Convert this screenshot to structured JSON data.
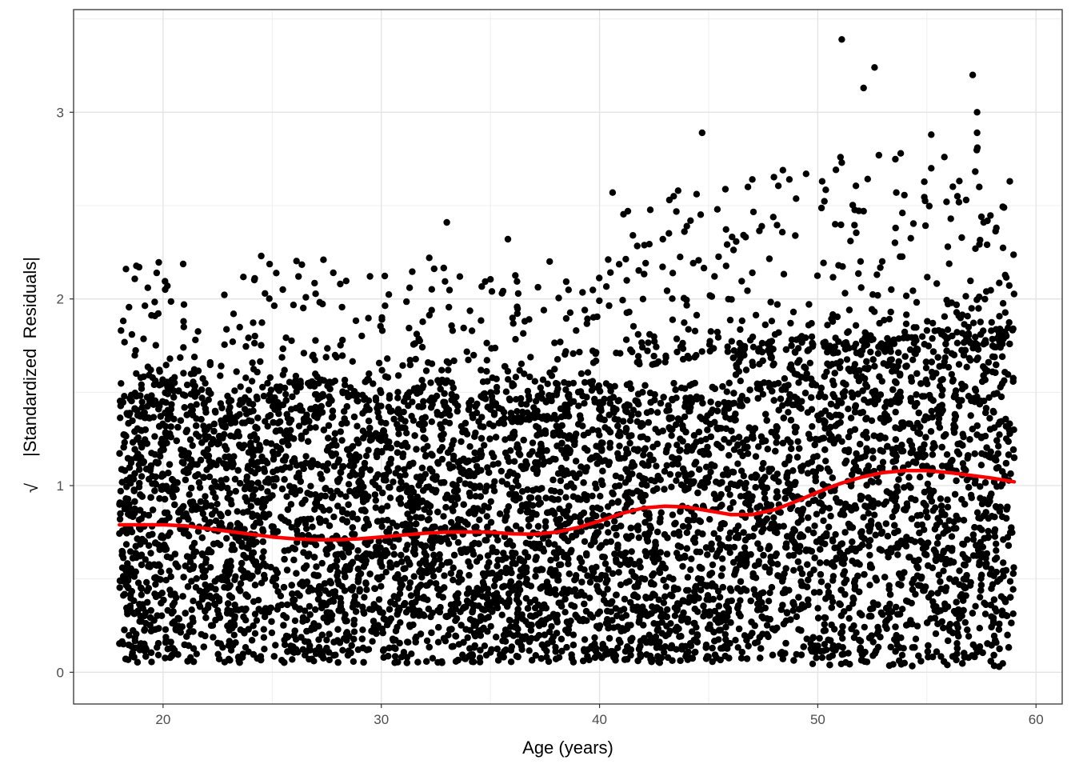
{
  "chart_data": {
    "type": "scatter",
    "title": "",
    "xlabel": "Age (years)",
    "ylabel_prefix": "√",
    "ylabel": "|Standardized  Residuals|",
    "xlim": [
      15.9,
      61.2
    ],
    "ylim": [
      -0.17,
      3.55
    ],
    "x_ticks": [
      20,
      30,
      40,
      50,
      60
    ],
    "x_tick_labels": [
      "20",
      "30",
      "40",
      "50",
      "60"
    ],
    "y_ticks": [
      0,
      1,
      2,
      3
    ],
    "y_tick_labels": [
      "0",
      "1",
      "2",
      "3"
    ],
    "grid": true,
    "point_color": "#000000",
    "smooth_color": "#ff0000",
    "x_range_of_points": [
      18,
      59
    ],
    "points_dense_band": "Points densely cover roughly 0.05 to 1.5 across the full age range, widening with age",
    "outliers": [
      {
        "x": 51.1,
        "y": 3.39
      },
      {
        "x": 52.6,
        "y": 3.24
      },
      {
        "x": 57.1,
        "y": 3.2
      },
      {
        "x": 52.1,
        "y": 3.13
      },
      {
        "x": 57.3,
        "y": 3.0
      },
      {
        "x": 57.3,
        "y": 2.89
      },
      {
        "x": 44.7,
        "y": 2.89
      },
      {
        "x": 55.2,
        "y": 2.88
      },
      {
        "x": 53.8,
        "y": 2.78
      },
      {
        "x": 52.8,
        "y": 2.77
      },
      {
        "x": 55.8,
        "y": 2.76
      },
      {
        "x": 51.1,
        "y": 2.73
      },
      {
        "x": 55.2,
        "y": 2.7
      },
      {
        "x": 48.4,
        "y": 2.69
      },
      {
        "x": 47.0,
        "y": 2.64
      },
      {
        "x": 48.7,
        "y": 2.64
      },
      {
        "x": 50.2,
        "y": 2.63
      },
      {
        "x": 58.8,
        "y": 2.63
      },
      {
        "x": 46.8,
        "y": 2.6
      },
      {
        "x": 57.4,
        "y": 2.6
      },
      {
        "x": 43.6,
        "y": 2.58
      },
      {
        "x": 40.6,
        "y": 2.57
      },
      {
        "x": 53.6,
        "y": 2.57
      },
      {
        "x": 43.4,
        "y": 2.55
      },
      {
        "x": 56.4,
        "y": 2.55
      },
      {
        "x": 43.2,
        "y": 2.53
      },
      {
        "x": 56.8,
        "y": 2.53
      },
      {
        "x": 55.9,
        "y": 2.52
      },
      {
        "x": 45.4,
        "y": 2.48
      },
      {
        "x": 52.1,
        "y": 2.47
      },
      {
        "x": 41.3,
        "y": 2.47
      },
      {
        "x": 57.5,
        "y": 2.44
      },
      {
        "x": 33.0,
        "y": 2.41
      },
      {
        "x": 57.6,
        "y": 2.41
      },
      {
        "x": 50.8,
        "y": 2.4
      },
      {
        "x": 44.0,
        "y": 2.39
      },
      {
        "x": 35.8,
        "y": 2.32
      },
      {
        "x": 42.9,
        "y": 2.32
      },
      {
        "x": 51.5,
        "y": 2.31
      },
      {
        "x": 24.5,
        "y": 2.23
      },
      {
        "x": 32.2,
        "y": 2.22
      },
      {
        "x": 18.9,
        "y": 2.17
      },
      {
        "x": 18.3,
        "y": 2.16
      },
      {
        "x": 27.8,
        "y": 2.14
      },
      {
        "x": 33.6,
        "y": 2.12
      },
      {
        "x": 24.2,
        "y": 2.11
      },
      {
        "x": 19.3,
        "y": 2.06
      },
      {
        "x": 20.2,
        "y": 2.07
      }
    ],
    "smooth_line": {
      "x": [
        18,
        19,
        20,
        21,
        22,
        23,
        24,
        25,
        26,
        27,
        28,
        29,
        30,
        31,
        32,
        33,
        34,
        35,
        36,
        37,
        38,
        39,
        40,
        41,
        42,
        43,
        44,
        45,
        46,
        47,
        48,
        49,
        50,
        51,
        52,
        53,
        54,
        55,
        56,
        57,
        58,
        59
      ],
      "y": [
        0.79,
        0.79,
        0.79,
        0.785,
        0.77,
        0.755,
        0.74,
        0.725,
        0.715,
        0.71,
        0.71,
        0.715,
        0.725,
        0.735,
        0.745,
        0.75,
        0.752,
        0.75,
        0.742,
        0.74,
        0.75,
        0.775,
        0.81,
        0.85,
        0.88,
        0.89,
        0.885,
        0.865,
        0.845,
        0.845,
        0.87,
        0.915,
        0.965,
        1.01,
        1.045,
        1.07,
        1.08,
        1.08,
        1.07,
        1.055,
        1.04,
        1.02
      ]
    }
  }
}
